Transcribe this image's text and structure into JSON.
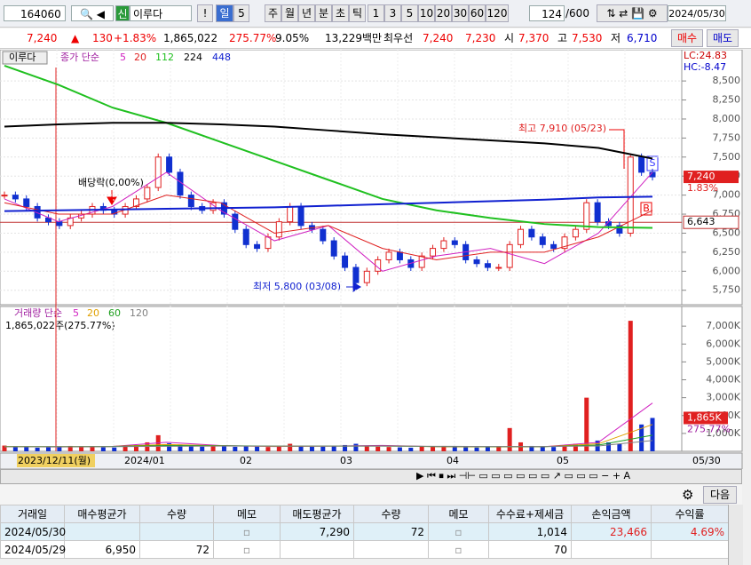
{
  "toolbar": {
    "code": "164060",
    "market": "신",
    "name": "이루다",
    "period": "일",
    "period_n": "5",
    "units": [
      "주",
      "월",
      "년",
      "분",
      "초",
      "틱"
    ],
    "minutes": [
      "1",
      "3",
      "5",
      "10",
      "20",
      "30",
      "60",
      "120"
    ],
    "count": "124",
    "max": "/600",
    "date": "2024/05/30"
  },
  "quote": {
    "price": "7,240",
    "change": "130",
    "pct": "+1.83%",
    "volume": "1,865,022",
    "vol_ratio": "275.77%",
    "turnover": "9.05%",
    "amount": "13,229백만",
    "best_label": "최우선",
    "ask": "7,240",
    "bid": "7,230",
    "open_label": "시",
    "open": "7,370",
    "high_label": "고",
    "high": "7,530",
    "low_label": "저",
    "low": "6,710",
    "buy": "매수",
    "sell": "매도"
  },
  "price_chart": {
    "type": "candlestick",
    "name": "이루다",
    "legend": "종가 단순",
    "lc": "LC:24.83",
    "hc": "HC:-8.47",
    "ylim": [
      5560,
      8910
    ],
    "yticks": [
      {
        "value": 5750,
        "label": "5,750"
      },
      {
        "value": 6000,
        "label": "6,000"
      },
      {
        "value": 6250,
        "label": "6,250"
      },
      {
        "value": 6500,
        "label": "6,500"
      },
      {
        "value": 6750,
        "label": "6,750"
      },
      {
        "value": 7000,
        "label": "7,000"
      },
      {
        "value": 7250,
        "label": "7,250"
      },
      {
        "value": 7500,
        "label": "7,500"
      },
      {
        "value": 7750,
        "label": "7,750"
      },
      {
        "value": 8000,
        "label": "8,000"
      },
      {
        "value": 8250,
        "label": "8,250"
      },
      {
        "value": 8500,
        "label": "8,500"
      }
    ],
    "closes": [
      7000,
      6950,
      6850,
      6700,
      6650,
      6600,
      6700,
      6750,
      6850,
      6800,
      6750,
      6850,
      6950,
      7100,
      7500,
      7300,
      7000,
      6850,
      6800,
      6900,
      6750,
      6550,
      6350,
      6300,
      6450,
      6650,
      6850,
      6600,
      6550,
      6400,
      6200,
      6050,
      5850,
      6000,
      6150,
      6250,
      6150,
      6050,
      6200,
      6300,
      6400,
      6350,
      6150,
      6100,
      6050,
      6050,
      6350,
      6550,
      6450,
      6350,
      6300,
      6450,
      6550,
      6900,
      6650,
      6600,
      6500,
      7500,
      7300,
      7240
    ],
    "series": [
      {
        "name": "5",
        "color": "#d020c0",
        "values": [
          6950,
          6650,
          6850,
          7300,
          6800,
          6400,
          6600,
          6000,
          6200,
          6300,
          6100,
          6500,
          7300
        ]
      },
      {
        "name": "20",
        "color": "#e02020",
        "values": [
          6900,
          6750,
          6750,
          7000,
          6900,
          6500,
          6600,
          6300,
          6150,
          6250,
          6250,
          6450,
          6800
        ]
      },
      {
        "name": "112",
        "color": "#20c020",
        "values": [
          8700,
          8450,
          8150,
          7950,
          7700,
          7450,
          7200,
          6950,
          6800,
          6700,
          6620,
          6580,
          6570
        ]
      },
      {
        "name": "224",
        "color": "#000000",
        "values": [
          7900,
          7930,
          7950,
          7950,
          7930,
          7900,
          7850,
          7800,
          7760,
          7720,
          7680,
          7620,
          7480
        ]
      },
      {
        "name": "448",
        "color": "#1020d0",
        "values": [
          6790,
          6800,
          6810,
          6820,
          6830,
          6840,
          6860,
          6880,
          6900,
          6920,
          6940,
          6970,
          6980
        ]
      }
    ],
    "level": {
      "value": 6643,
      "label": "6,643"
    },
    "last": {
      "value": 7240,
      "label": "7,240"
    },
    "last_pct": "1.83%",
    "annotations": {
      "high": "최고 7,910 (05/23)",
      "low": "최저 5,800 (03/08)",
      "dividend": "배당락(0,00%)",
      "sell_signal": "S",
      "buy_signal": "B"
    }
  },
  "volume_chart": {
    "type": "bar",
    "legend": "거래량 단순",
    "summary": "1,865,022주(275.77%)",
    "ylim": [
      0,
      8100
    ],
    "yticks": [
      {
        "value": 1000,
        "label": "1,000K"
      },
      {
        "value": 2000,
        "label": "2,000K"
      },
      {
        "value": 3000,
        "label": "3,000K"
      },
      {
        "value": 4000,
        "label": "4,000K"
      },
      {
        "value": 5000,
        "label": "5,000K"
      },
      {
        "value": 6000,
        "label": "6,000K"
      },
      {
        "value": 7000,
        "label": "7,000K"
      }
    ],
    "values": [
      320,
      280,
      250,
      200,
      220,
      260,
      300,
      240,
      280,
      220,
      210,
      300,
      350,
      500,
      900,
      450,
      380,
      300,
      260,
      300,
      280,
      250,
      300,
      260,
      240,
      300,
      420,
      280,
      250,
      260,
      300,
      350,
      420,
      300,
      260,
      240,
      220,
      200,
      250,
      260,
      300,
      240,
      220,
      210,
      230,
      250,
      1300,
      500,
      300,
      260,
      240,
      300,
      420,
      3000,
      600,
      500,
      400,
      7300,
      1500,
      1865
    ],
    "series": [
      {
        "name": "5",
        "color": "#d020c0",
        "values": [
          260,
          240,
          270,
          500,
          320,
          270,
          290,
          330,
          260,
          250,
          260,
          500,
          2700
        ]
      },
      {
        "name": "20",
        "color": "#e0a000",
        "values": [
          270,
          260,
          270,
          380,
          310,
          280,
          290,
          300,
          260,
          250,
          260,
          420,
          1500
        ]
      },
      {
        "name": "60",
        "color": "#20a020",
        "values": [
          260,
          260,
          270,
          320,
          310,
          290,
          290,
          290,
          270,
          260,
          260,
          350,
          900
        ]
      },
      {
        "name": "120",
        "color": "#808080",
        "values": [
          250,
          255,
          260,
          280,
          290,
          290,
          290,
          290,
          280,
          270,
          270,
          300,
          600
        ]
      }
    ],
    "last": {
      "value": 1865,
      "label": "1,865K"
    },
    "last_pct": "275.77%"
  },
  "x_axis": {
    "start": "2023/12/11(월)",
    "labels": [
      "2024/01",
      "02",
      "03",
      "04",
      "05",
      "05/30"
    ]
  },
  "bottom_bar": {
    "next": "다음"
  },
  "table": {
    "headers": [
      "거래일",
      "매수평균가",
      "수량",
      "메모",
      "매도평균가",
      "수량",
      "메모",
      "수수료+제세금",
      "손익금액",
      "수익률"
    ],
    "rows": [
      [
        "2024/05/30",
        null,
        null,
        null,
        "7,290",
        "72",
        null,
        "1,014",
        "23,466",
        "4.69%"
      ],
      [
        "2024/05/29",
        "6,950",
        "72",
        null,
        null,
        null,
        null,
        "70",
        null,
        null
      ]
    ]
  }
}
